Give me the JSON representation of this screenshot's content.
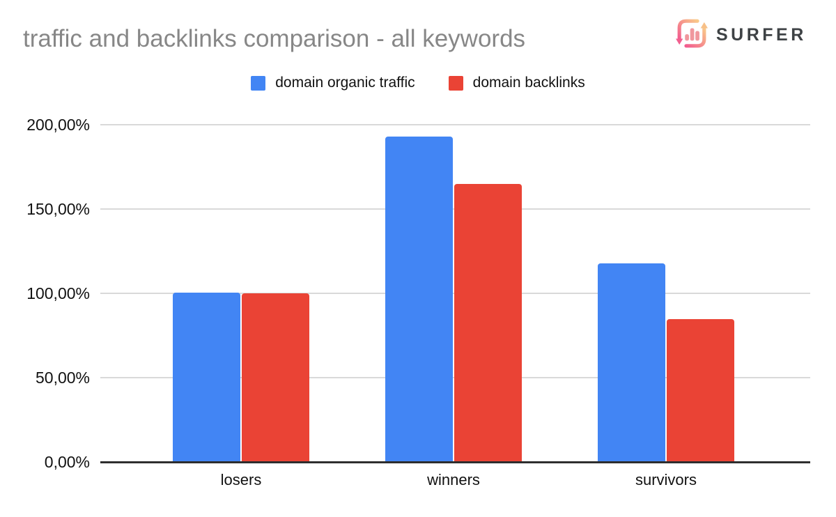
{
  "header": {
    "title": "traffic and backlinks comparison - all keywords",
    "brand": "SURFER"
  },
  "chart_data": {
    "type": "bar",
    "title": "traffic and backlinks comparison - all keywords",
    "categories": [
      "losers",
      "winners",
      "survivors"
    ],
    "series": [
      {
        "name": "domain organic traffic",
        "color": "#4285f4",
        "values": [
          100.4,
          193,
          117.8
        ]
      },
      {
        "name": "domain backlinks",
        "color": "#ea4335",
        "values": [
          100,
          164.9,
          84.7
        ]
      }
    ],
    "xlabel": "",
    "ylabel": "",
    "ylim": [
      0,
      200
    ],
    "ytick_values": [
      0,
      50,
      100,
      150,
      200
    ],
    "ytick_labels": [
      "0,00%",
      "50,00%",
      "100,00%",
      "150,00%",
      "200,00%"
    ],
    "grid": true,
    "legend_position": "top",
    "colors": {
      "grid": "#d9d9d9",
      "axis": "#2e2e2e",
      "title": "#878787",
      "tick_text": "#111111"
    }
  }
}
